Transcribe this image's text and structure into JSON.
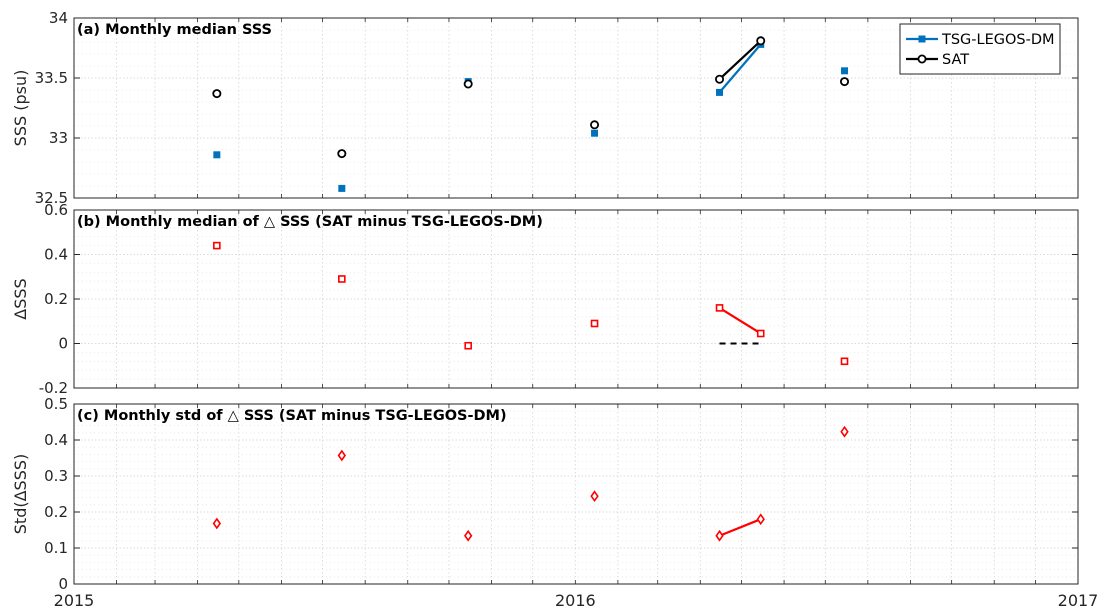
{
  "chart_data": [
    {
      "type": "scatter",
      "panel": "a",
      "title": "(a) Monthly median SSS",
      "ylabel": "SSS (psu)",
      "xlabel": "",
      "xlim": [
        "2015-01-01",
        "2017-01-01"
      ],
      "ylim": [
        32.5,
        34
      ],
      "yticks": [
        32.5,
        33,
        33.5,
        34
      ],
      "ytick_labels": [
        "32.5",
        "33",
        "33.5",
        "34"
      ],
      "grid": true,
      "legend": "top-right",
      "series": [
        {
          "name": "TSG-LEGOS-DM",
          "color": "#0072BD",
          "marker": "square",
          "x": [
            "2015-04-15",
            "2015-07-15",
            "2015-10-15",
            "2016-01-15",
            "2016-04-15",
            "2016-05-15",
            "2016-07-15"
          ],
          "values": [
            32.86,
            32.58,
            33.47,
            33.04,
            33.38,
            33.78,
            33.56
          ],
          "connected_segments": [
            [
              4,
              5
            ]
          ]
        },
        {
          "name": "SAT",
          "color": "#000000",
          "marker": "circle",
          "x": [
            "2015-04-15",
            "2015-07-15",
            "2015-10-15",
            "2016-01-15",
            "2016-04-15",
            "2016-05-15",
            "2016-07-15"
          ],
          "values": [
            33.37,
            32.87,
            33.45,
            33.11,
            33.49,
            33.81,
            33.47
          ],
          "connected_segments": [
            [
              4,
              5
            ]
          ]
        }
      ]
    },
    {
      "type": "scatter",
      "panel": "b",
      "title": "(b) Monthly median of △ SSS (SAT minus TSG-LEGOS-DM)",
      "ylabel": "ΔSSS",
      "xlabel": "",
      "xlim": [
        "2015-01-01",
        "2017-01-01"
      ],
      "ylim": [
        -0.2,
        0.6
      ],
      "yticks": [
        -0.2,
        0,
        0.2,
        0.4,
        0.6
      ],
      "ytick_labels": [
        "-0.2",
        "0",
        "0.2",
        "0.4",
        "0.6"
      ],
      "grid": true,
      "series": [
        {
          "color": "#FF0000",
          "marker": "square",
          "x": [
            "2015-04-15",
            "2015-07-15",
            "2015-10-15",
            "2016-01-15",
            "2016-04-15",
            "2016-05-15",
            "2016-07-15"
          ],
          "values": [
            0.44,
            0.29,
            -0.01,
            0.09,
            0.16,
            0.045,
            -0.08
          ],
          "connected_segments": [
            [
              4,
              5
            ]
          ]
        }
      ],
      "reference_line": {
        "y": 0,
        "x": [
          "2016-04-15",
          "2016-05-15"
        ],
        "style": "dashed",
        "color": "#000000"
      }
    },
    {
      "type": "scatter",
      "panel": "c",
      "title": "(c) Monthly std of △ SSS (SAT minus TSG-LEGOS-DM)",
      "ylabel": "Std(ΔSSS)",
      "xlabel": "",
      "xlim": [
        "2015-01-01",
        "2017-01-01"
      ],
      "ylim": [
        0,
        0.5
      ],
      "yticks": [
        0,
        0.1,
        0.2,
        0.3,
        0.4,
        0.5
      ],
      "ytick_labels": [
        "0",
        "0.1",
        "0.2",
        "0.3",
        "0.4",
        "0.5"
      ],
      "xticks": [
        "2015-01-01",
        "2016-01-01",
        "2017-01-01"
      ],
      "xtick_labels": [
        "2015",
        "2016",
        "2017"
      ],
      "grid": true,
      "series": [
        {
          "color": "#FF0000",
          "marker": "diamond",
          "x": [
            "2015-04-15",
            "2015-07-15",
            "2015-10-15",
            "2016-01-15",
            "2016-04-15",
            "2016-05-15",
            "2016-07-15"
          ],
          "values": [
            0.168,
            0.357,
            0.134,
            0.244,
            0.134,
            0.18,
            0.423
          ],
          "connected_segments": [
            [
              4,
              5
            ]
          ]
        }
      ]
    }
  ]
}
